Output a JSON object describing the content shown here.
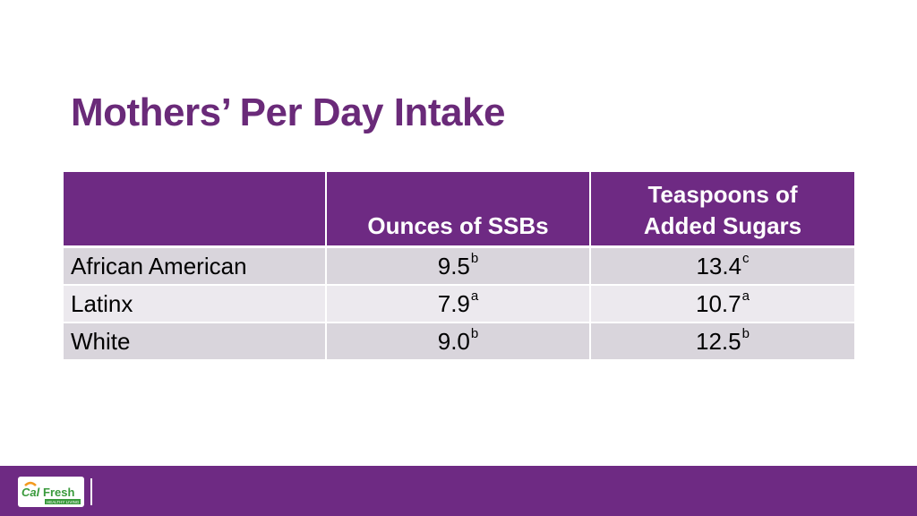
{
  "slide": {
    "title": "Mothers’ Per Day Intake"
  },
  "table": {
    "headers": [
      "",
      "Ounces of SSBs",
      "Teaspoons of Added Sugars"
    ],
    "rows": [
      {
        "group": "African American",
        "ssb": "9.5",
        "ssb_sup": "b",
        "sugar": "13.4",
        "sugar_sup": "c"
      },
      {
        "group": "Latinx",
        "ssb": "7.9",
        "ssb_sup": "a",
        "sugar": "10.7",
        "sugar_sup": "a"
      },
      {
        "group": "White",
        "ssb": "9.0",
        "ssb_sup": "b",
        "sugar": "12.5",
        "sugar_sup": "b"
      }
    ]
  },
  "footer": {
    "logo_text": "CalFresh",
    "logo_subtext": "HEALTHY LIVING",
    "logo_icon": "calfresh-logo-icon"
  },
  "colors": {
    "brand_purple": "#6e2a83",
    "title_purple": "#6a2a79",
    "row_dark": "#d9d5dc",
    "row_light": "#ece9ee",
    "logo_green": "#3a9a3c",
    "logo_orange": "#f39a1e"
  }
}
